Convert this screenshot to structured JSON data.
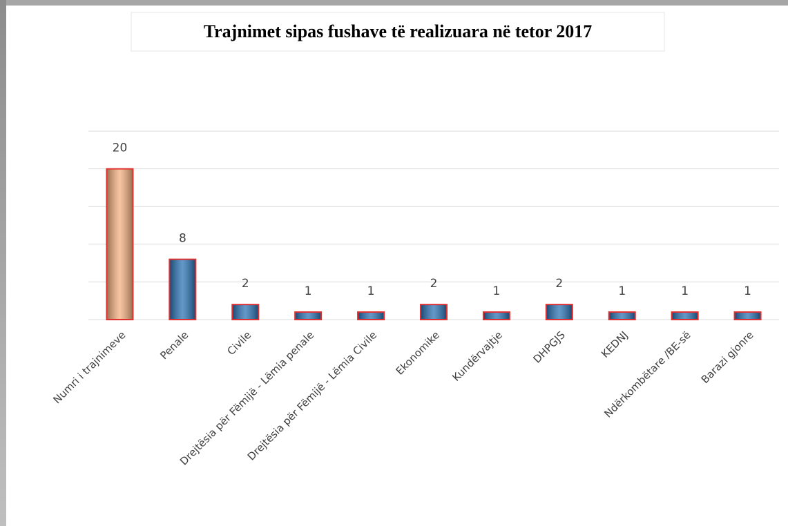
{
  "chart_data": {
    "type": "bar",
    "title": "Trajnimet  sipas fushave të realizuara  në tetor 2017",
    "categories": [
      "Numri i trajnimeve",
      "Penale",
      "Civile",
      "Drejtësia për Fëmijë - Lëmia penale",
      "Drejtësia për Fëmijë - Lëmia Civile",
      "Ekonomike",
      "Kundërvajtje",
      "DHPGJS",
      "KEDNJ",
      "Ndërkombëtare /BE-së",
      "Barazi gjonre"
    ],
    "values": [
      20,
      8,
      2,
      1,
      1,
      2,
      1,
      2,
      1,
      1,
      1
    ],
    "colors": [
      "#f4b183",
      "#2e75b6",
      "#2e75b6",
      "#2e75b6",
      "#2e75b6",
      "#2e75b6",
      "#2e75b6",
      "#2e75b6",
      "#2e75b6",
      "#2e75b6",
      "#2e75b6"
    ],
    "border_color": "#e03030",
    "ylim": [
      0,
      25
    ],
    "yticks": [
      0,
      5,
      10,
      15,
      20,
      25
    ],
    "grid": true
  }
}
